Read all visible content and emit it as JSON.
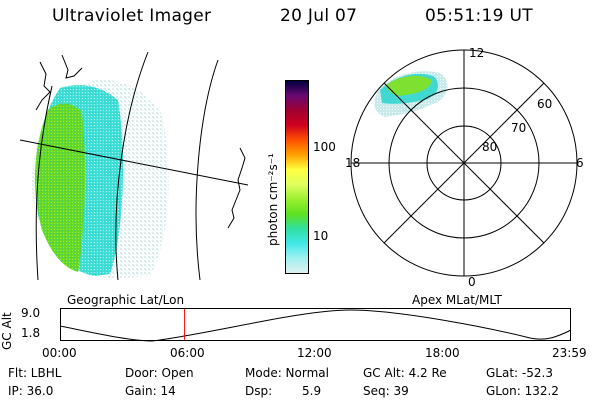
{
  "header": {
    "title": "Ultraviolet Imager",
    "date": "20 Jul 07",
    "time": "05:51:19 UT"
  },
  "colorbar": {
    "unit": "photon cm⁻²s⁻¹",
    "ticks": [
      "100",
      "10"
    ],
    "colors": [
      "#000040",
      "#6a0a72",
      "#a00030",
      "#d0001e",
      "#ff5000",
      "#ffa000",
      "#ffff40",
      "#e0ff60",
      "#9cf030",
      "#60e020",
      "#30e0a0",
      "#40e8e8",
      "#a0f0f0",
      "#e0f0f0"
    ]
  },
  "polar": {
    "mlt_labels": {
      "top": "12",
      "right": "6",
      "bottom": "0",
      "left": "18"
    },
    "lat_labels": [
      "60",
      "70",
      "80"
    ]
  },
  "labels": {
    "left_panel": "Geographic Lat/Lon",
    "right_panel": "Apex MLat/MLT"
  },
  "timeline": {
    "axis_title": "GC Alt",
    "y_ticks": [
      "9.0",
      "1.8"
    ],
    "x_ticks": [
      "00:00",
      "06:00",
      "12:00",
      "18:00",
      "23:59"
    ],
    "current_time_fraction": 0.2439,
    "marker_color": "#ff0000"
  },
  "info": {
    "flt": "Flt: LBHL",
    "ip": "IP: 36.0",
    "door": "Door: Open",
    "gain": "Gain: 14",
    "mode": "Mode: Normal",
    "dsp_label": "Dsp:",
    "dsp_value": "5.9",
    "gcalt": "GC Alt: 4.2 Re",
    "seq": "Seq: 39",
    "glat": "GLat: -52.3",
    "glon": "GLon: 132.2"
  }
}
